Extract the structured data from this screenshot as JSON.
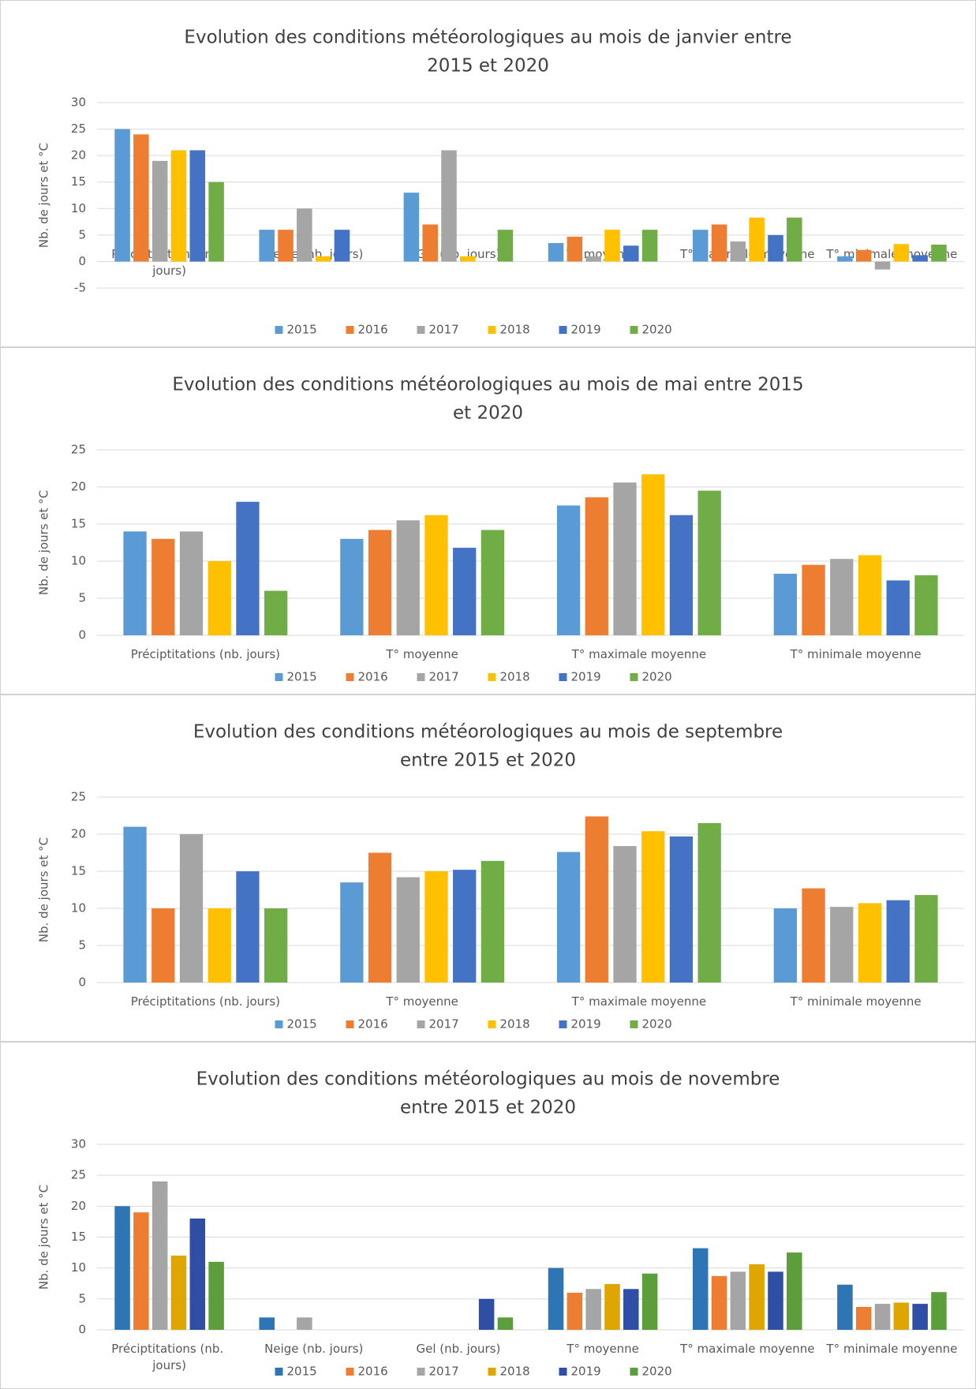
{
  "chart_data": [
    {
      "type": "bar",
      "title": [
        "Evolution des conditions météorologiques au mois de janvier entre",
        "2015 et 2020"
      ],
      "y_label": "Nb. de jours et °C",
      "categories": [
        "Préciptitations (nb. jours)",
        "Neige (nb. jours)",
        "Gel (nb. jours)",
        "T° moyenne",
        "T° maximale moyenne",
        "T° minimale moyenne"
      ],
      "series": [
        {
          "name": "2015",
          "color": "#5b9bd5",
          "values": [
            25,
            6,
            13,
            3.5,
            6,
            1
          ]
        },
        {
          "name": "2016",
          "color": "#ed7d31",
          "values": [
            24,
            6,
            7,
            4.7,
            7,
            2.2
          ]
        },
        {
          "name": "2017",
          "color": "#a5a5a5",
          "values": [
            19,
            10,
            21,
            1,
            3.8,
            -1.5
          ]
        },
        {
          "name": "2018",
          "color": "#ffc000",
          "values": [
            21,
            1,
            1,
            6,
            8.3,
            3.3
          ]
        },
        {
          "name": "2019",
          "color": "#4472c4",
          "values": [
            21,
            6,
            0,
            3,
            5,
            1.2
          ]
        },
        {
          "name": "2020",
          "color": "#70ad47",
          "values": [
            15,
            0,
            6,
            6,
            8.3,
            3.2
          ]
        }
      ],
      "ylim": [
        -5,
        30
      ],
      "yticks": [
        -5,
        0,
        5,
        10,
        15,
        20,
        25,
        30
      ],
      "grid": true
    },
    {
      "type": "bar",
      "title": [
        "Evolution des conditions météorologiques au mois de mai entre 2015",
        "et 2020"
      ],
      "y_label": "Nb. de jours et °C",
      "categories": [
        "Préciptitations (nb. jours)",
        "T° moyenne",
        "T° maximale moyenne",
        "T° minimale moyenne"
      ],
      "series": [
        {
          "name": "2015",
          "color": "#5b9bd5",
          "values": [
            14,
            13,
            17.5,
            8.3
          ]
        },
        {
          "name": "2016",
          "color": "#ed7d31",
          "values": [
            13,
            14.2,
            18.6,
            9.5
          ]
        },
        {
          "name": "2017",
          "color": "#a5a5a5",
          "values": [
            14,
            15.5,
            20.6,
            10.3
          ]
        },
        {
          "name": "2018",
          "color": "#ffc000",
          "values": [
            10,
            16.2,
            21.7,
            10.8
          ]
        },
        {
          "name": "2019",
          "color": "#4472c4",
          "values": [
            18,
            11.8,
            16.2,
            7.4
          ]
        },
        {
          "name": "2020",
          "color": "#70ad47",
          "values": [
            6,
            14.2,
            19.5,
            8.1
          ]
        }
      ],
      "ylim": [
        0,
        25
      ],
      "yticks": [
        0,
        5,
        10,
        15,
        20,
        25
      ],
      "grid": true
    },
    {
      "type": "bar",
      "title": [
        "Evolution des conditions météorologiques au mois de septembre",
        "entre 2015 et 2020"
      ],
      "y_label": "Nb. de jours et °C",
      "categories": [
        "Préciptitations (nb. jours)",
        "T° moyenne",
        "T° maximale moyenne",
        "T° minimale moyenne"
      ],
      "series": [
        {
          "name": "2015",
          "color": "#5b9bd5",
          "values": [
            21,
            13.5,
            17.6,
            10
          ]
        },
        {
          "name": "2016",
          "color": "#ed7d31",
          "values": [
            10,
            17.5,
            22.4,
            12.7
          ]
        },
        {
          "name": "2017",
          "color": "#a5a5a5",
          "values": [
            20,
            14.2,
            18.4,
            10.2
          ]
        },
        {
          "name": "2018",
          "color": "#ffc000",
          "values": [
            10,
            15,
            20.4,
            10.7
          ]
        },
        {
          "name": "2019",
          "color": "#4472c4",
          "values": [
            15,
            15.2,
            19.7,
            11.1
          ]
        },
        {
          "name": "2020",
          "color": "#70ad47",
          "values": [
            10,
            16.4,
            21.5,
            11.8
          ]
        }
      ],
      "ylim": [
        0,
        25
      ],
      "yticks": [
        0,
        5,
        10,
        15,
        20,
        25
      ],
      "grid": true
    },
    {
      "type": "bar",
      "title": [
        "Evolution des conditions météorologiques au mois de novembre",
        "entre 2015 et 2020"
      ],
      "y_label": "Nb. de jours et °C",
      "categories": [
        "Préciptitations (nb. jours)",
        "Neige (nb. jours)",
        "Gel (nb. jours)",
        "T° moyenne",
        "T° maximale moyenne",
        "T° minimale moyenne"
      ],
      "series": [
        {
          "name": "2015",
          "color": "#2e75b6",
          "values": [
            20,
            2,
            0,
            10,
            13.2,
            7.3
          ]
        },
        {
          "name": "2016",
          "color": "#ed7d31",
          "values": [
            19,
            0,
            0,
            6,
            8.7,
            3.7
          ]
        },
        {
          "name": "2017",
          "color": "#a5a5a5",
          "values": [
            24,
            2,
            0,
            6.6,
            9.4,
            4.2
          ]
        },
        {
          "name": "2018",
          "color": "#dfa500",
          "values": [
            12,
            0,
            0,
            7.4,
            10.6,
            4.4
          ]
        },
        {
          "name": "2019",
          "color": "#2f4ea6",
          "values": [
            18,
            0,
            5,
            6.6,
            9.4,
            4.2
          ]
        },
        {
          "name": "2020",
          "color": "#5b9e3b",
          "values": [
            11,
            0,
            2,
            9.1,
            12.5,
            6.1
          ]
        }
      ],
      "ylim": [
        0,
        30
      ],
      "yticks": [
        0,
        5,
        10,
        15,
        20,
        25,
        30
      ],
      "grid": true
    }
  ]
}
